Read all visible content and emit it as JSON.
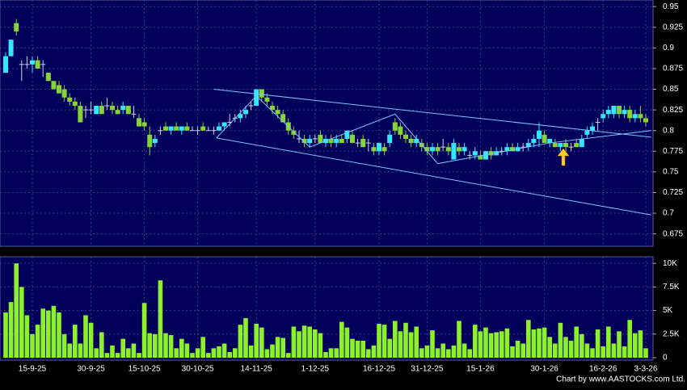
{
  "chart_data": [
    {
      "type": "candlestick",
      "categories": [
        null,
        null,
        null,
        null,
        null,
        "15-9-25",
        null,
        null,
        null,
        null,
        null,
        null,
        null,
        null,
        null,
        null,
        "30-9-25",
        null,
        null,
        null,
        null,
        null,
        null,
        null,
        null,
        null,
        "15-10-25",
        null,
        null,
        null,
        null,
        null,
        null,
        null,
        null,
        null,
        "30-10-25",
        null,
        null,
        null,
        null,
        null,
        null,
        null,
        null,
        null,
        null,
        "14-11-25",
        null,
        null,
        null,
        null,
        null,
        null,
        null,
        null,
        null,
        null,
        "1-12-25",
        null,
        null,
        null,
        null,
        null,
        null,
        null,
        null,
        null,
        null,
        null,
        "16-12-25",
        null,
        null,
        null,
        null,
        null,
        null,
        null,
        null,
        "31-12-25",
        null,
        null,
        null,
        null,
        null,
        null,
        null,
        null,
        null,
        "15-1-26",
        null,
        null,
        null,
        null,
        null,
        null,
        null,
        null,
        null,
        null,
        null,
        "30-1-26",
        null,
        null,
        null,
        null,
        null,
        null,
        null,
        null,
        null,
        null,
        "16-2-26",
        null,
        null,
        null,
        null,
        null,
        null,
        null,
        "3-3-26"
      ],
      "open": [
        0.87,
        0.89,
        0.93,
        0.88,
        0.88,
        0.88,
        0.885,
        0.88,
        0.87,
        0.86,
        0.855,
        0.85,
        0.84,
        0.835,
        0.83,
        0.825,
        0.825,
        0.82,
        0.83,
        0.83,
        0.83,
        0.825,
        0.825,
        0.83,
        0.82,
        0.815,
        0.81,
        0.795,
        0.785,
        0.8,
        0.805,
        0.8,
        0.805,
        0.8,
        0.805,
        0.8,
        0.8,
        0.805,
        0.8,
        0.8,
        0.8,
        0.805,
        0.81,
        0.815,
        0.815,
        0.82,
        0.83,
        0.83,
        0.85,
        0.84,
        0.83,
        0.825,
        0.82,
        0.81,
        0.8,
        0.79,
        0.79,
        0.785,
        0.79,
        0.795,
        0.785,
        0.79,
        0.785,
        0.79,
        0.79,
        0.795,
        0.785,
        0.79,
        0.785,
        0.78,
        0.775,
        0.78,
        0.785,
        0.81,
        0.805,
        0.795,
        0.79,
        0.785,
        0.785,
        0.78,
        0.775,
        0.78,
        0.78,
        0.78,
        0.765,
        0.78,
        0.775,
        0.77,
        0.77,
        0.77,
        0.765,
        0.775,
        0.77,
        0.775,
        0.775,
        0.78,
        0.775,
        0.78,
        0.78,
        0.785,
        0.79,
        0.795,
        0.785,
        0.785,
        0.78,
        0.785,
        0.78,
        0.785,
        0.78,
        0.795,
        0.8,
        0.81,
        0.815,
        0.82,
        0.82,
        0.83,
        0.82,
        0.825,
        0.815,
        0.82,
        0.815
      ],
      "high": [
        0.895,
        0.91,
        0.935,
        0.885,
        0.89,
        0.89,
        0.89,
        0.885,
        0.87,
        0.86,
        0.86,
        0.855,
        0.845,
        0.84,
        0.835,
        0.83,
        0.835,
        0.83,
        0.835,
        0.84,
        0.835,
        0.83,
        0.835,
        0.83,
        0.83,
        0.82,
        0.815,
        0.805,
        0.795,
        0.805,
        0.81,
        0.805,
        0.81,
        0.805,
        0.81,
        0.805,
        0.805,
        0.81,
        0.805,
        0.805,
        0.81,
        0.81,
        0.82,
        0.82,
        0.825,
        0.83,
        0.835,
        0.85,
        0.85,
        0.845,
        0.835,
        0.83,
        0.825,
        0.815,
        0.805,
        0.8,
        0.795,
        0.795,
        0.795,
        0.8,
        0.795,
        0.795,
        0.795,
        0.795,
        0.8,
        0.8,
        0.79,
        0.795,
        0.79,
        0.785,
        0.785,
        0.785,
        0.8,
        0.815,
        0.81,
        0.8,
        0.795,
        0.795,
        0.79,
        0.785,
        0.785,
        0.785,
        0.79,
        0.785,
        0.79,
        0.785,
        0.785,
        0.775,
        0.78,
        0.775,
        0.775,
        0.78,
        0.78,
        0.78,
        0.785,
        0.785,
        0.785,
        0.785,
        0.79,
        0.795,
        0.81,
        0.8,
        0.79,
        0.79,
        0.785,
        0.79,
        0.785,
        0.79,
        0.795,
        0.805,
        0.81,
        0.815,
        0.825,
        0.83,
        0.83,
        0.83,
        0.83,
        0.83,
        0.825,
        0.83,
        0.82
      ],
      "low": [
        0.87,
        0.89,
        0.915,
        0.86,
        0.875,
        0.87,
        0.875,
        0.865,
        0.86,
        0.85,
        0.845,
        0.835,
        0.83,
        0.825,
        0.81,
        0.815,
        0.82,
        0.82,
        0.82,
        0.825,
        0.82,
        0.82,
        0.82,
        0.82,
        0.815,
        0.805,
        0.8,
        0.77,
        0.78,
        0.795,
        0.8,
        0.795,
        0.8,
        0.795,
        0.8,
        0.8,
        0.795,
        0.8,
        0.8,
        0.795,
        0.8,
        0.8,
        0.805,
        0.81,
        0.81,
        0.815,
        0.825,
        0.83,
        0.835,
        0.83,
        0.82,
        0.815,
        0.81,
        0.795,
        0.79,
        0.785,
        0.78,
        0.78,
        0.785,
        0.785,
        0.78,
        0.78,
        0.78,
        0.785,
        0.785,
        0.785,
        0.78,
        0.78,
        0.775,
        0.77,
        0.77,
        0.77,
        0.78,
        0.795,
        0.79,
        0.785,
        0.78,
        0.78,
        0.775,
        0.77,
        0.77,
        0.77,
        0.775,
        0.77,
        0.765,
        0.77,
        0.77,
        0.765,
        0.765,
        0.765,
        0.765,
        0.765,
        0.77,
        0.77,
        0.77,
        0.775,
        0.775,
        0.775,
        0.775,
        0.78,
        0.78,
        0.785,
        0.78,
        0.78,
        0.775,
        0.775,
        0.775,
        0.78,
        0.78,
        0.79,
        0.795,
        0.8,
        0.81,
        0.815,
        0.815,
        0.815,
        0.815,
        0.81,
        0.81,
        0.81,
        0.805
      ],
      "close": [
        0.89,
        0.91,
        0.92,
        0.88,
        0.88,
        0.885,
        0.875,
        0.88,
        0.86,
        0.85,
        0.845,
        0.84,
        0.835,
        0.83,
        0.81,
        0.825,
        0.825,
        0.83,
        0.82,
        0.83,
        0.825,
        0.82,
        0.83,
        0.82,
        0.82,
        0.805,
        0.805,
        0.78,
        0.79,
        0.8,
        0.8,
        0.805,
        0.8,
        0.805,
        0.8,
        0.8,
        0.8,
        0.8,
        0.8,
        0.8,
        0.805,
        0.81,
        0.81,
        0.815,
        0.82,
        0.825,
        0.83,
        0.85,
        0.84,
        0.835,
        0.825,
        0.82,
        0.81,
        0.8,
        0.795,
        0.79,
        0.785,
        0.79,
        0.79,
        0.785,
        0.79,
        0.785,
        0.79,
        0.785,
        0.8,
        0.785,
        0.785,
        0.78,
        0.785,
        0.775,
        0.785,
        0.775,
        0.795,
        0.8,
        0.795,
        0.79,
        0.785,
        0.79,
        0.78,
        0.775,
        0.78,
        0.775,
        0.78,
        0.775,
        0.785,
        0.775,
        0.78,
        0.77,
        0.775,
        0.765,
        0.775,
        0.77,
        0.775,
        0.775,
        0.78,
        0.775,
        0.78,
        0.78,
        0.785,
        0.79,
        0.8,
        0.785,
        0.79,
        0.78,
        0.785,
        0.78,
        0.78,
        0.78,
        0.79,
        0.8,
        0.805,
        0.81,
        0.82,
        0.825,
        0.83,
        0.82,
        0.825,
        0.815,
        0.82,
        0.815,
        0.81
      ],
      "up_color": "#33e8ff",
      "down_color": "#86d43a",
      "flat_color": "#d0d0e0",
      "ylim": [
        0.66,
        0.958
      ],
      "yticks": [
        0.675,
        0.7,
        0.725,
        0.75,
        0.775,
        0.8,
        0.825,
        0.85,
        0.875,
        0.9,
        0.925,
        0.95
      ],
      "grid": true,
      "trend_lines": [
        {
          "x": [
            39,
            121
          ],
          "y": [
            0.85,
            0.792
          ]
        },
        {
          "x": [
            39.5,
            121
          ],
          "y": [
            0.791,
            0.698
          ]
        },
        {
          "x": [
            39.5,
            47,
            57,
            73,
            81,
            102,
            121
          ],
          "y": [
            0.791,
            0.842,
            0.78,
            0.82,
            0.76,
            0.785,
            0.8
          ]
        }
      ],
      "trend_color": "#7cc4ff"
    },
    {
      "type": "bar",
      "values": [
        4800,
        5900,
        10000,
        7500,
        4500,
        2500,
        3500,
        5200,
        5000,
        5500,
        4800,
        2500,
        1500,
        3500,
        1500,
        4500,
        3700,
        1000,
        2700,
        500,
        1300,
        500,
        2000,
        1000,
        1500,
        500,
        5800,
        2600,
        2500,
        8200,
        2600,
        2400,
        1000,
        2000,
        1500,
        500,
        1000,
        2200,
        500,
        1000,
        1200,
        1500,
        600,
        1000,
        3500,
        4200,
        1300,
        3600,
        3200,
        900,
        1400,
        2200,
        2100,
        500,
        3300,
        2800,
        3400,
        3300,
        3000,
        2600,
        600,
        1000,
        1000,
        3800,
        3200,
        2000,
        1800,
        1800,
        900,
        1300,
        3600,
        3500,
        2000,
        3900,
        2800,
        3700,
        2700,
        3300,
        1000,
        1300,
        2900,
        1000,
        1500,
        900,
        1300,
        3900,
        1500,
        900,
        3500,
        2800,
        3200,
        2600,
        2700,
        2800,
        3100,
        1200,
        1800,
        1500,
        4000,
        3000,
        3100,
        3200,
        2200,
        1500,
        3700,
        2200,
        1800,
        3300,
        2500,
        1500,
        1000,
        3000,
        1200,
        3300,
        1500,
        2800,
        1200,
        4000,
        2600,
        2900,
        1000
      ],
      "color": "#8cf02a",
      "ylim": [
        0,
        10700
      ],
      "yticks": [
        0,
        {
          "value": 2500,
          "label": "2.5K"
        },
        {
          "value": 5000,
          "label": "5K"
        },
        {
          "value": 7500,
          "label": "7.5K"
        },
        {
          "value": 10000,
          "label": "10K"
        }
      ],
      "grid": true
    }
  ],
  "footer": "Chart by www.AASTOCKS.com Ltd."
}
